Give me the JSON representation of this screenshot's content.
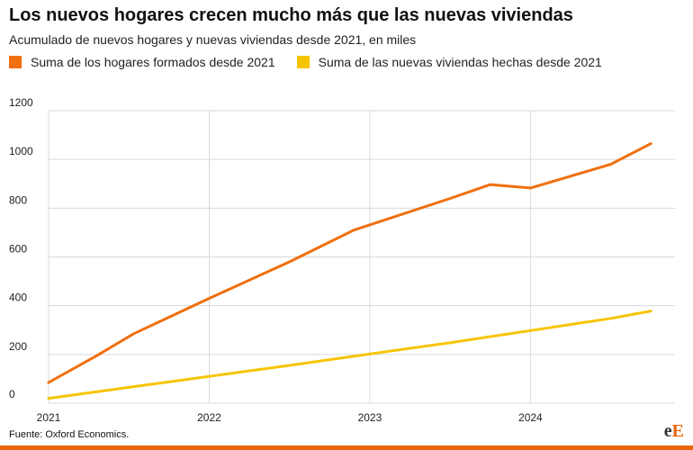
{
  "title": "Los nuevos hogares crecen mucho más que las nuevas viviendas",
  "subtitle": "Acumulado de nuevos hogares y nuevas viviendas desde 2021, en miles",
  "source": "Fuente: Oxford Economics.",
  "logo": {
    "e": "e",
    "E": "E"
  },
  "colors": {
    "households": "#f06f0e",
    "dwellings": "#f7c400",
    "accent": "#e8650b",
    "grid": "#d9d9d9"
  },
  "chart_data": {
    "type": "line",
    "title": "Los nuevos hogares crecen mucho más que las nuevas viviendas",
    "subtitle": "Acumulado de nuevos hogares y nuevas viviendas desde 2021, en miles",
    "xlabel": "",
    "ylabel": "",
    "x_ticks": [
      "2021",
      "2022",
      "2023",
      "2024"
    ],
    "y_ticks": [
      0,
      200,
      400,
      600,
      800,
      1000,
      1200
    ],
    "xlim": [
      2021.0,
      2024.9
    ],
    "ylim": [
      0,
      1200
    ],
    "grid": true,
    "legend_position": "top",
    "series": [
      {
        "name": "Suma de los hogares formados desde 2021",
        "color": "#f06f0e",
        "points": [
          [
            2021.0,
            85
          ],
          [
            2021.3,
            195
          ],
          [
            2021.53,
            285
          ],
          [
            2022.0,
            430
          ],
          [
            2022.5,
            580
          ],
          [
            2022.9,
            710
          ],
          [
            2023.5,
            840
          ],
          [
            2023.75,
            897
          ],
          [
            2024.0,
            883
          ],
          [
            2024.5,
            980
          ],
          [
            2024.75,
            1065
          ]
        ]
      },
      {
        "name": "Suma de las nuevas viviendas hechas desde 2021",
        "color": "#f7c400",
        "points": [
          [
            2021.0,
            20
          ],
          [
            2021.5,
            65
          ],
          [
            2022.0,
            110
          ],
          [
            2022.5,
            155
          ],
          [
            2023.0,
            202
          ],
          [
            2023.5,
            248
          ],
          [
            2024.0,
            298
          ],
          [
            2024.5,
            348
          ],
          [
            2024.75,
            378
          ]
        ]
      }
    ]
  }
}
